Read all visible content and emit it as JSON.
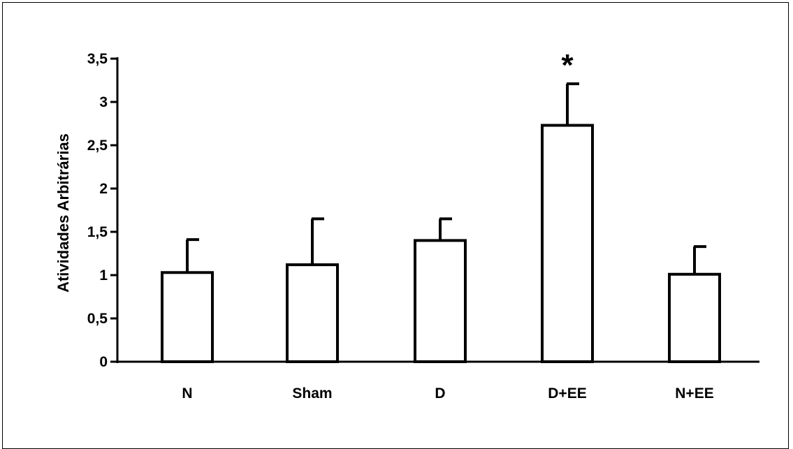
{
  "chart_data": {
    "type": "bar",
    "title": "",
    "xlabel": "",
    "ylabel": "Atividades Arbitrárias",
    "categories": [
      "N",
      "Sham",
      "D",
      "D+EE",
      "N+EE"
    ],
    "values": [
      1.03,
      1.12,
      1.4,
      2.73,
      1.01
    ],
    "error_upper": [
      0.38,
      0.53,
      0.25,
      0.48,
      0.32
    ],
    "ylim": [
      0,
      3.5
    ],
    "yticks": [
      0,
      0.5,
      1,
      1.5,
      2,
      2.5,
      3,
      3.5
    ],
    "ytick_labels": [
      "0",
      "0,5",
      "1",
      "1,5",
      "2",
      "2,5",
      "3",
      "3,5"
    ],
    "annotations": [
      {
        "category": "D+EE",
        "text": "*"
      }
    ],
    "grid": false,
    "legend": "none",
    "bar_fill": "#ffffff",
    "bar_stroke": "#000000"
  }
}
